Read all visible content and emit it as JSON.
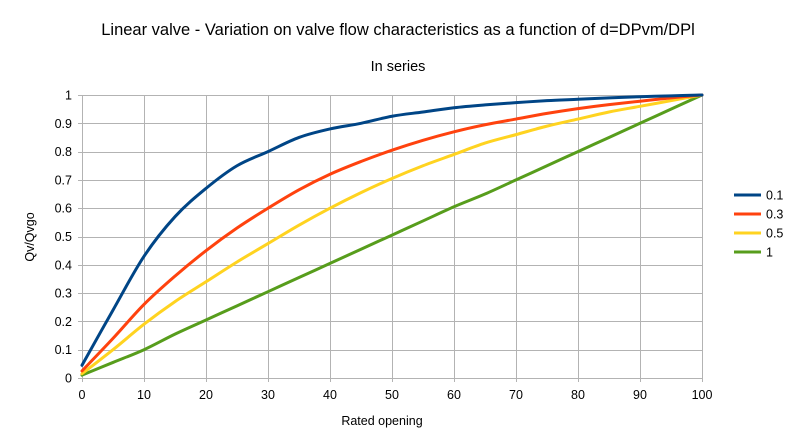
{
  "chart_data": {
    "type": "line",
    "title": "Linear valve - Variation on valve flow characteristics as a function of d=DPvm/DPl",
    "subtitle": "In series",
    "xlabel": "Rated opening",
    "ylabel": "Qv/Qvgo",
    "xlim": [
      0,
      100
    ],
    "ylim": [
      0,
      1
    ],
    "x_ticks": [
      "0",
      "10",
      "20",
      "30",
      "40",
      "50",
      "60",
      "70",
      "80",
      "90",
      "100"
    ],
    "y_ticks": [
      "0",
      "0.1",
      "0.2",
      "0.3",
      "0.4",
      "0.5",
      "0.6",
      "0.7",
      "0.8",
      "0.9",
      "1"
    ],
    "grid": true,
    "legend_position": "right",
    "x": [
      0,
      5,
      10,
      15,
      20,
      25,
      30,
      35,
      40,
      45,
      50,
      55,
      60,
      65,
      70,
      75,
      80,
      85,
      90,
      95,
      100
    ],
    "series": [
      {
        "name": "0.1",
        "color": "#004586",
        "values": [
          0.045,
          0.24,
          0.43,
          0.57,
          0.67,
          0.75,
          0.8,
          0.85,
          0.88,
          0.9,
          0.925,
          0.94,
          0.955,
          0.965,
          0.973,
          0.98,
          0.985,
          0.99,
          0.994,
          0.997,
          1.0
        ]
      },
      {
        "name": "0.3",
        "color": "#ff420e",
        "values": [
          0.025,
          0.14,
          0.26,
          0.36,
          0.45,
          0.53,
          0.6,
          0.665,
          0.72,
          0.765,
          0.805,
          0.84,
          0.87,
          0.895,
          0.915,
          0.935,
          0.952,
          0.966,
          0.978,
          0.99,
          1.0
        ]
      },
      {
        "name": "0.5",
        "color": "#ffd320",
        "values": [
          0.015,
          0.1,
          0.19,
          0.27,
          0.34,
          0.41,
          0.475,
          0.54,
          0.6,
          0.655,
          0.705,
          0.75,
          0.79,
          0.83,
          0.86,
          0.89,
          0.915,
          0.94,
          0.96,
          0.98,
          1.0
        ]
      },
      {
        "name": "1",
        "color": "#579d1c",
        "values": [
          0.01,
          0.055,
          0.1,
          0.155,
          0.205,
          0.255,
          0.305,
          0.355,
          0.405,
          0.455,
          0.505,
          0.555,
          0.605,
          0.65,
          0.7,
          0.75,
          0.8,
          0.85,
          0.9,
          0.95,
          1.0
        ]
      }
    ]
  }
}
